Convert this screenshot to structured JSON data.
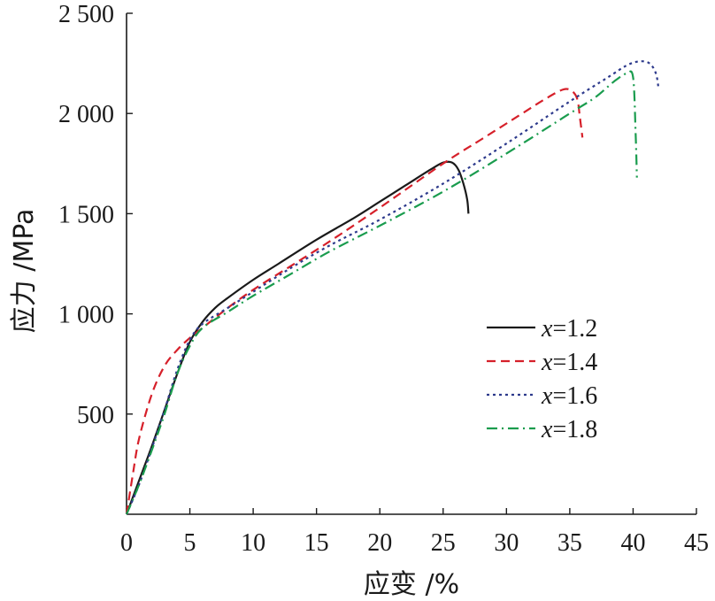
{
  "chart_data": {
    "type": "line",
    "xlabel": "应变 /%",
    "ylabel": "应力 /MPa",
    "xlim": [
      0,
      45
    ],
    "ylim": [
      0,
      2500
    ],
    "x_ticks": [
      0,
      5,
      10,
      15,
      20,
      25,
      30,
      35,
      40,
      45
    ],
    "y_ticks": [
      500,
      1000,
      1500,
      2000,
      2500
    ],
    "x_tick_labels": [
      "0",
      "5",
      "10",
      "15",
      "20",
      "25",
      "30",
      "35",
      "40",
      "45"
    ],
    "y_tick_labels": [
      "500",
      "1 000",
      "1 500",
      "2 000",
      "2 500"
    ],
    "grid": false,
    "legend_position": "center-right",
    "series": [
      {
        "name_var": "x",
        "name_value": "=1.2",
        "color": "#1a1a1a",
        "dash": "solid",
        "x": [
          0,
          1,
          2,
          3,
          4,
          5,
          6,
          7,
          8,
          10,
          12,
          15,
          18,
          20,
          22,
          24,
          25,
          25.7,
          26.2,
          26.6,
          26.9,
          27.0
        ],
        "y": [
          0,
          170,
          340,
          520,
          700,
          860,
          960,
          1030,
          1080,
          1170,
          1250,
          1370,
          1480,
          1560,
          1640,
          1720,
          1755,
          1755,
          1720,
          1650,
          1570,
          1500
        ]
      },
      {
        "name_var": "x",
        "name_value": "=1.4",
        "color": "#d6202a",
        "dash": "10,6",
        "x": [
          0,
          0.5,
          1,
          2,
          3,
          4,
          5,
          6,
          8,
          10,
          13,
          16,
          20,
          25,
          28,
          31,
          33,
          34.5,
          35.2,
          35.6,
          35.8,
          36.0
        ],
        "y": [
          0,
          200,
          380,
          600,
          740,
          820,
          880,
          930,
          1030,
          1120,
          1240,
          1360,
          1530,
          1750,
          1870,
          1990,
          2070,
          2120,
          2110,
          2070,
          1980,
          1880
        ]
      },
      {
        "name_var": "x",
        "name_value": "=1.6",
        "color": "#2d3a8c",
        "dash": "3,4",
        "x": [
          0,
          1,
          2,
          3,
          4,
          5,
          6,
          8,
          10,
          13,
          16,
          20,
          25,
          30,
          35,
          38,
          39.5,
          40.5,
          41.3,
          41.8,
          42.0
        ],
        "y": [
          0,
          150,
          330,
          520,
          720,
          870,
          950,
          1030,
          1110,
          1230,
          1340,
          1470,
          1650,
          1850,
          2060,
          2180,
          2240,
          2260,
          2250,
          2200,
          2130
        ]
      },
      {
        "name_var": "x",
        "name_value": "=1.8",
        "color": "#1a9c4e",
        "dash": "12,5,2,5",
        "x": [
          0,
          1,
          2,
          3,
          4,
          5,
          6,
          8,
          10,
          13,
          16,
          20,
          25,
          30,
          35,
          37,
          38.5,
          39.5,
          40.0,
          40.2,
          40.3
        ],
        "y": [
          0,
          150,
          320,
          500,
          700,
          840,
          930,
          1010,
          1090,
          1200,
          1310,
          1440,
          1610,
          1800,
          2000,
          2080,
          2160,
          2200,
          2180,
          1900,
          1680
        ]
      }
    ]
  }
}
